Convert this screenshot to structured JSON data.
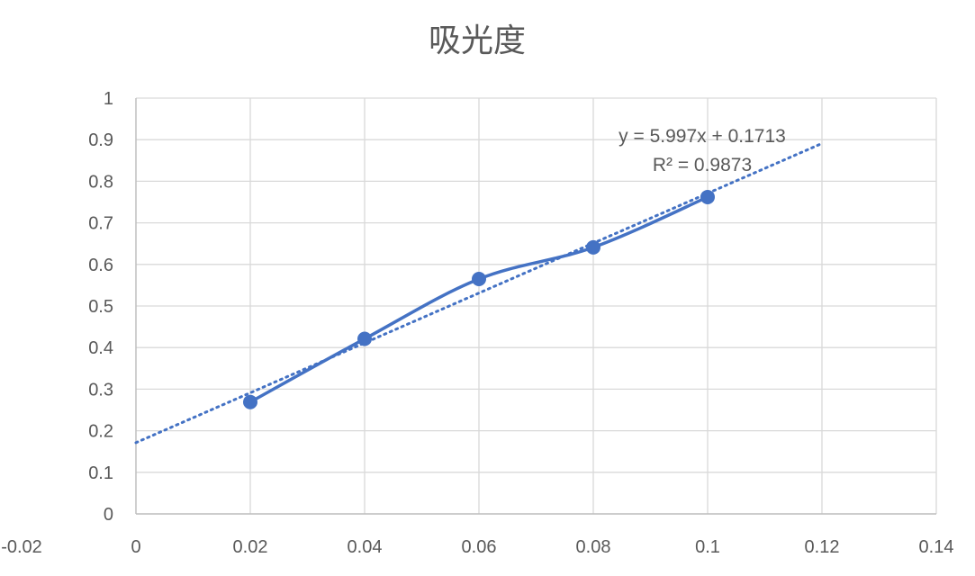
{
  "chart_data": {
    "type": "scatter",
    "title": "吸光度",
    "xlabel": "",
    "ylabel": "",
    "xlim": [
      -0.02,
      0.14
    ],
    "ylim": [
      0,
      1
    ],
    "x_ticks": [
      "-0.02",
      "0",
      "0.02",
      "0.04",
      "0.06",
      "0.08",
      "0.1",
      "0.12",
      "0.14"
    ],
    "y_ticks": [
      "0",
      "0.1",
      "0.2",
      "0.3",
      "0.4",
      "0.5",
      "0.6",
      "0.7",
      "0.8",
      "0.9",
      "1"
    ],
    "grid": true,
    "line_style": "smooth line with markers",
    "series": [
      {
        "x": [
          0.02,
          0.04,
          0.06,
          0.08,
          0.1
        ],
        "y": [
          0.269,
          0.421,
          0.565,
          0.641,
          0.762
        ],
        "color": "#4472C4"
      }
    ],
    "trendline": {
      "type": "linear",
      "slope": 5.997,
      "intercept": 0.1713,
      "x_range": [
        0,
        0.12
      ],
      "style": "dotted",
      "color": "#4472C4"
    },
    "annotations": {
      "equation": "y = 5.997x + 0.1713",
      "r_squared": "R² = 0.9873"
    }
  }
}
